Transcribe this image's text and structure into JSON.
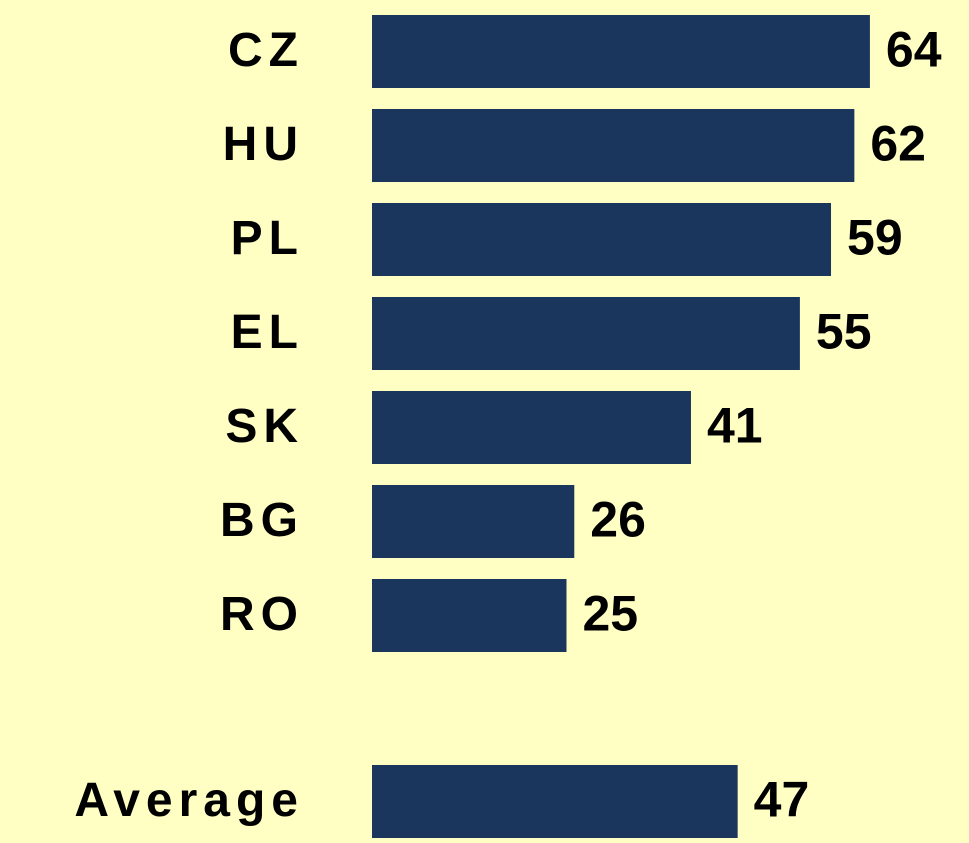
{
  "chart_data": {
    "type": "bar",
    "orientation": "horizontal",
    "categories": [
      "CZ",
      "HU",
      "PL",
      "EL",
      "SK",
      "BG",
      "RO",
      "Average"
    ],
    "values": [
      64,
      62,
      59,
      55,
      41,
      26,
      25,
      47
    ],
    "color": "#1b365d"
  }
}
